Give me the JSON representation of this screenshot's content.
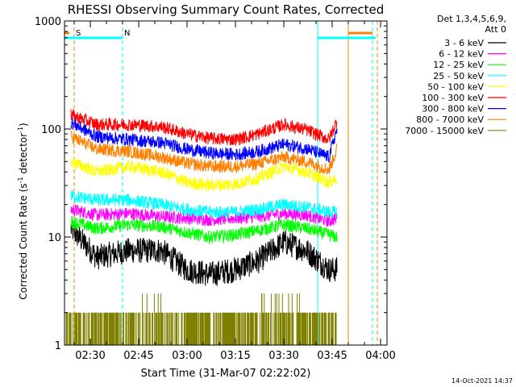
{
  "chart_data": {
    "type": "line",
    "title": "RHESSI Observing Summary Count Rates, Corrected",
    "xlabel": "Start Time (31-Mar-07 02:22:02)",
    "ylabel_main": "Corrected Count Rate (s",
    "ylabel_sup1": "-1",
    "ylabel_mid": " detector",
    "ylabel_sup2": "-1",
    "ylabel_end": ")",
    "y_scale": "log",
    "ylim": [
      1,
      1000
    ],
    "xlim_minutes": [
      0,
      100
    ],
    "x_ticks": [
      {
        "label": "02:30",
        "t": 8
      },
      {
        "label": "02:45",
        "t": 23
      },
      {
        "label": "03:00",
        "t": 38
      },
      {
        "label": "03:15",
        "t": 53
      },
      {
        "label": "03:30",
        "t": 68
      },
      {
        "label": "03:45",
        "t": 83
      },
      {
        "label": "04:00",
        "t": 98
      }
    ],
    "y_ticks": [
      {
        "label": "1",
        "v": 1
      },
      {
        "label": "10",
        "v": 10
      },
      {
        "label": "100",
        "v": 100
      },
      {
        "label": "1000",
        "v": 1000
      }
    ],
    "legend_header": [
      "Det 1,3,4,5,6,9,",
      "Att 0"
    ],
    "legend_placement": "right",
    "series": [
      {
        "name": "3 - 6 keV",
        "color": "#000000",
        "t": [
          2,
          10,
          20,
          30,
          38,
          45,
          53,
          60,
          68,
          75,
          82,
          84.5
        ],
        "values": [
          12,
          6.5,
          7.5,
          7.5,
          5,
          4.5,
          5,
          6,
          9,
          7.5,
          5,
          5
        ]
      },
      {
        "name": "6 - 12 keV",
        "color": "#ff00ff",
        "t": [
          2,
          10,
          20,
          30,
          38,
          45,
          53,
          60,
          68,
          75,
          82,
          84.5
        ],
        "values": [
          18,
          16,
          16.5,
          15.5,
          15,
          14.5,
          15,
          15.5,
          16.5,
          16,
          14,
          15
        ]
      },
      {
        "name": "12 - 25 keV",
        "color": "#00ff00",
        "t": [
          2,
          10,
          20,
          30,
          38,
          45,
          53,
          60,
          68,
          75,
          82,
          84.5
        ],
        "values": [
          14,
          12,
          13,
          12.5,
          11,
          10,
          10.5,
          11.5,
          13,
          12,
          10.5,
          10
        ]
      },
      {
        "name": "25 - 50 keV",
        "color": "#00ffff",
        "t": [
          2,
          10,
          20,
          30,
          38,
          45,
          53,
          60,
          68,
          75,
          82,
          84.5
        ],
        "values": [
          24,
          22,
          22,
          20,
          18,
          17,
          17,
          18,
          20,
          19,
          17,
          17
        ]
      },
      {
        "name": "50 - 100 keV",
        "color": "#ffff00",
        "t": [
          2,
          10,
          20,
          30,
          38,
          45,
          53,
          60,
          68,
          75,
          82,
          84.5
        ],
        "values": [
          50,
          40,
          45,
          40,
          32,
          30,
          31,
          35,
          45,
          40,
          32,
          35
        ]
      },
      {
        "name": "100 - 300 keV",
        "color": "#ff0000",
        "t": [
          2,
          10,
          20,
          30,
          38,
          45,
          53,
          60,
          68,
          75,
          82,
          84.5
        ],
        "values": [
          135,
          110,
          110,
          105,
          90,
          82,
          80,
          90,
          110,
          98,
          80,
          120
        ]
      },
      {
        "name": "300 - 800 keV",
        "color": "#0000ff",
        "t": [
          2,
          10,
          20,
          30,
          38,
          45,
          53,
          60,
          68,
          75,
          82,
          84.5
        ],
        "values": [
          115,
          85,
          80,
          75,
          65,
          60,
          58,
          62,
          72,
          66,
          55,
          100
        ]
      },
      {
        "name": "800 - 7000 keV",
        "color": "#ff8000",
        "t": [
          2,
          10,
          20,
          30,
          38,
          45,
          53,
          60,
          68,
          75,
          82,
          84.5
        ],
        "values": [
          85,
          65,
          62,
          55,
          48,
          45,
          45,
          48,
          55,
          50,
          42,
          65
        ]
      },
      {
        "name": "7000 - 15000 keV",
        "color": "#808000",
        "t": [
          0.5,
          3,
          6,
          10,
          15,
          20,
          24,
          27,
          30,
          34,
          37,
          40,
          44,
          48,
          52,
          56,
          60,
          63,
          66,
          70,
          73,
          76,
          80,
          83,
          84.5
        ],
        "values": [
          2,
          1,
          2,
          1,
          2,
          1,
          2,
          3,
          2,
          1,
          2,
          1,
          2,
          1,
          2,
          1,
          2,
          3,
          2,
          3,
          2,
          2,
          1,
          2,
          1
        ]
      }
    ],
    "annotations": [
      {
        "text": "S",
        "t": 3.5,
        "color": "#ff8000"
      },
      {
        "text": "N",
        "t": 18.5,
        "color": "#00ffff"
      }
    ],
    "footer_timestamp": "14-Oct-2021 14:37"
  }
}
